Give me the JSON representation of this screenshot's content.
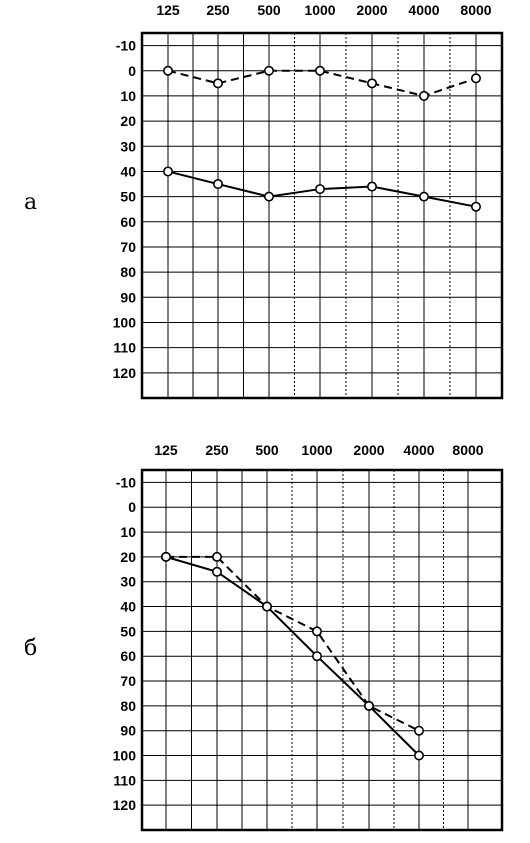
{
  "chart_data": [
    {
      "type": "line",
      "panel_label": "а",
      "x": [
        "125",
        "250",
        "500",
        "1000",
        "2000",
        "4000",
        "8000"
      ],
      "y_ticks": [
        "-10",
        "0",
        "10",
        "20",
        "30",
        "40",
        "50",
        "60",
        "70",
        "80",
        "90",
        "100",
        "110",
        "120"
      ],
      "ylim": [
        -15,
        130
      ],
      "y_inverted": true,
      "grid": true,
      "series": [
        {
          "style": "dashed",
          "values": [
            0,
            5,
            0,
            0,
            5,
            10,
            3
          ]
        },
        {
          "style": "solid",
          "values": [
            40,
            45,
            50,
            47,
            46,
            50,
            54
          ]
        }
      ]
    },
    {
      "type": "line",
      "panel_label": "б",
      "x": [
        "125",
        "250",
        "500",
        "1000",
        "2000",
        "4000",
        "8000"
      ],
      "y_ticks": [
        "-10",
        "0",
        "10",
        "20",
        "30",
        "40",
        "50",
        "60",
        "70",
        "80",
        "90",
        "100",
        "110",
        "120"
      ],
      "ylim": [
        -15,
        130
      ],
      "y_inverted": true,
      "grid": true,
      "series": [
        {
          "style": "dashed",
          "values": [
            20,
            20,
            40,
            50,
            80,
            90,
            null
          ]
        },
        {
          "style": "solid",
          "values": [
            20,
            26,
            40,
            60,
            80,
            100,
            null
          ]
        }
      ]
    }
  ]
}
